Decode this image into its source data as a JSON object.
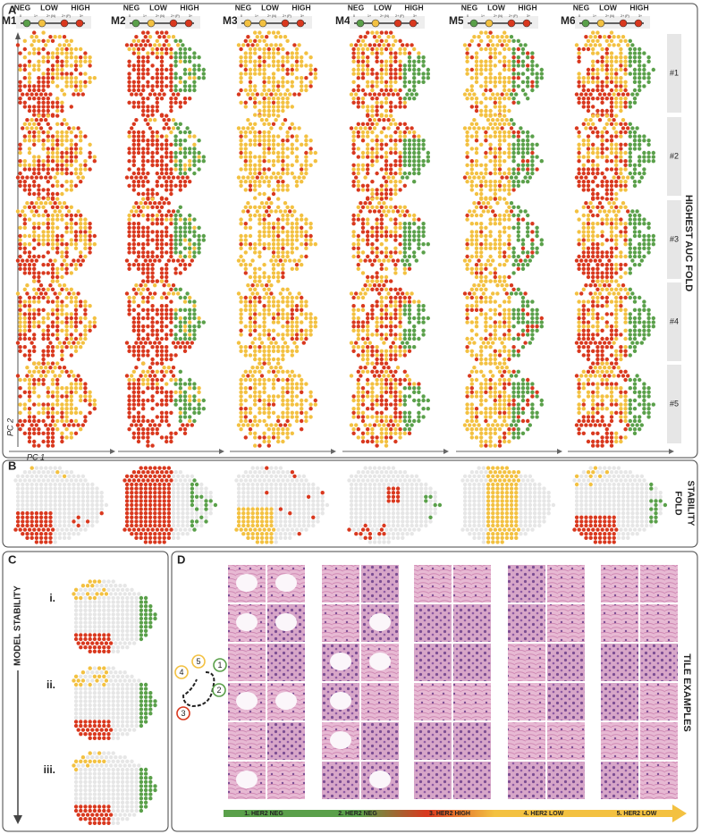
{
  "panel_a": {
    "label": "A",
    "models": [
      "M1",
      "M2",
      "M3",
      "M4",
      "M5",
      "M6"
    ],
    "scale": {
      "neg": "NEG",
      "low": "LOW",
      "high": "HIGH",
      "ticks": [
        "0",
        "1+",
        "2+ (N)",
        "2+ (P)",
        "3+"
      ]
    },
    "rows": [
      "#1",
      "#2",
      "#3",
      "#4",
      "#5"
    ],
    "side_label": "HIGHEST AUC FOLD",
    "y_axis": "PC 2",
    "x_axis": "PC 1"
  },
  "panel_b": {
    "label": "B",
    "side_label": [
      "FOLD",
      "STABILITY"
    ]
  },
  "panel_c": {
    "label": "C",
    "rows": [
      "i.",
      "ii.",
      "iii."
    ],
    "side_label": "MODEL STABILITY"
  },
  "panel_d": {
    "label": "D",
    "side_label": "TILE EXAMPLES",
    "steps": [
      "1",
      "2",
      "3",
      "4",
      "5"
    ],
    "groups": [
      "1. HER2 NEG",
      "2. HER2 NEG",
      "3. HER2 HIGH",
      "4. HER2 LOW",
      "5. HER2 LOW"
    ]
  }
}
